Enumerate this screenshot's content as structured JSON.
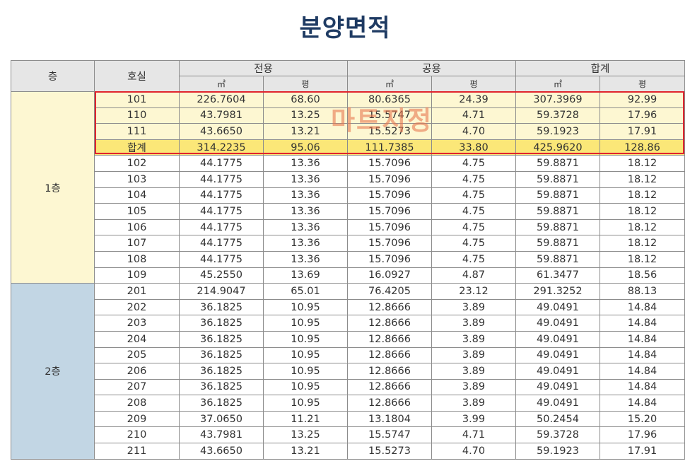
{
  "title": "분양면적",
  "watermark": "마트지정",
  "headers": {
    "floor": "층",
    "unit": "호실",
    "exclusive": "전용",
    "common": "공용",
    "total": "합계",
    "sqm": "㎡",
    "pyeong": "평"
  },
  "floors": [
    {
      "label": "1층",
      "rows": [
        {
          "unit": "101",
          "ex_m2": "226.7604",
          "ex_py": "68.60",
          "co_m2": "80.6365",
          "co_py": "24.39",
          "to_m2": "307.3969",
          "to_py": "92.99",
          "highlight": "light"
        },
        {
          "unit": "110",
          "ex_m2": "43.7981",
          "ex_py": "13.25",
          "co_m2": "15.5747",
          "co_py": "4.71",
          "to_m2": "59.3728",
          "to_py": "17.96",
          "highlight": "light"
        },
        {
          "unit": "111",
          "ex_m2": "43.6650",
          "ex_py": "13.21",
          "co_m2": "15.5273",
          "co_py": "4.70",
          "to_m2": "59.1923",
          "to_py": "17.91",
          "highlight": "light"
        },
        {
          "unit": "합계",
          "ex_m2": "314.2235",
          "ex_py": "95.06",
          "co_m2": "111.7385",
          "co_py": "33.80",
          "to_m2": "425.9620",
          "to_py": "128.86",
          "highlight": "sum"
        },
        {
          "unit": "102",
          "ex_m2": "44.1775",
          "ex_py": "13.36",
          "co_m2": "15.7096",
          "co_py": "4.75",
          "to_m2": "59.8871",
          "to_py": "18.12"
        },
        {
          "unit": "103",
          "ex_m2": "44.1775",
          "ex_py": "13.36",
          "co_m2": "15.7096",
          "co_py": "4.75",
          "to_m2": "59.8871",
          "to_py": "18.12"
        },
        {
          "unit": "104",
          "ex_m2": "44.1775",
          "ex_py": "13.36",
          "co_m2": "15.7096",
          "co_py": "4.75",
          "to_m2": "59.8871",
          "to_py": "18.12"
        },
        {
          "unit": "105",
          "ex_m2": "44.1775",
          "ex_py": "13.36",
          "co_m2": "15.7096",
          "co_py": "4.75",
          "to_m2": "59.8871",
          "to_py": "18.12"
        },
        {
          "unit": "106",
          "ex_m2": "44.1775",
          "ex_py": "13.36",
          "co_m2": "15.7096",
          "co_py": "4.75",
          "to_m2": "59.8871",
          "to_py": "18.12"
        },
        {
          "unit": "107",
          "ex_m2": "44.1775",
          "ex_py": "13.36",
          "co_m2": "15.7096",
          "co_py": "4.75",
          "to_m2": "59.8871",
          "to_py": "18.12"
        },
        {
          "unit": "108",
          "ex_m2": "44.1775",
          "ex_py": "13.36",
          "co_m2": "15.7096",
          "co_py": "4.75",
          "to_m2": "59.8871",
          "to_py": "18.12"
        },
        {
          "unit": "109",
          "ex_m2": "45.2550",
          "ex_py": "13.69",
          "co_m2": "16.0927",
          "co_py": "4.87",
          "to_m2": "61.3477",
          "to_py": "18.56"
        }
      ]
    },
    {
      "label": "2층",
      "rows": [
        {
          "unit": "201",
          "ex_m2": "214.9047",
          "ex_py": "65.01",
          "co_m2": "76.4205",
          "co_py": "23.12",
          "to_m2": "291.3252",
          "to_py": "88.13"
        },
        {
          "unit": "202",
          "ex_m2": "36.1825",
          "ex_py": "10.95",
          "co_m2": "12.8666",
          "co_py": "3.89",
          "to_m2": "49.0491",
          "to_py": "14.84"
        },
        {
          "unit": "203",
          "ex_m2": "36.1825",
          "ex_py": "10.95",
          "co_m2": "12.8666",
          "co_py": "3.89",
          "to_m2": "49.0491",
          "to_py": "14.84"
        },
        {
          "unit": "204",
          "ex_m2": "36.1825",
          "ex_py": "10.95",
          "co_m2": "12.8666",
          "co_py": "3.89",
          "to_m2": "49.0491",
          "to_py": "14.84"
        },
        {
          "unit": "205",
          "ex_m2": "36.1825",
          "ex_py": "10.95",
          "co_m2": "12.8666",
          "co_py": "3.89",
          "to_m2": "49.0491",
          "to_py": "14.84"
        },
        {
          "unit": "206",
          "ex_m2": "36.1825",
          "ex_py": "10.95",
          "co_m2": "12.8666",
          "co_py": "3.89",
          "to_m2": "49.0491",
          "to_py": "14.84"
        },
        {
          "unit": "207",
          "ex_m2": "36.1825",
          "ex_py": "10.95",
          "co_m2": "12.8666",
          "co_py": "3.89",
          "to_m2": "49.0491",
          "to_py": "14.84"
        },
        {
          "unit": "208",
          "ex_m2": "36.1825",
          "ex_py": "10.95",
          "co_m2": "12.8666",
          "co_py": "3.89",
          "to_m2": "49.0491",
          "to_py": "14.84"
        },
        {
          "unit": "209",
          "ex_m2": "37.0650",
          "ex_py": "11.21",
          "co_m2": "13.1804",
          "co_py": "3.99",
          "to_m2": "50.2454",
          "to_py": "15.20"
        },
        {
          "unit": "210",
          "ex_m2": "43.7981",
          "ex_py": "13.25",
          "co_m2": "15.5747",
          "co_py": "4.71",
          "to_m2": "59.3728",
          "to_py": "17.96"
        },
        {
          "unit": "211",
          "ex_m2": "43.6650",
          "ex_py": "13.21",
          "co_m2": "15.5273",
          "co_py": "4.70",
          "to_m2": "59.1923",
          "to_py": "17.91"
        }
      ]
    }
  ],
  "colors": {
    "title": "#1f3b63",
    "header_bg": "#e6e6e6",
    "floor1_bg": "#fcd9b0",
    "floor2_bg": "#c2d6e4",
    "highlight_light": "#fdf7d2",
    "highlight_sum": "#fbe778",
    "highlight_border": "#e0242e",
    "watermark": "#e87850"
  }
}
